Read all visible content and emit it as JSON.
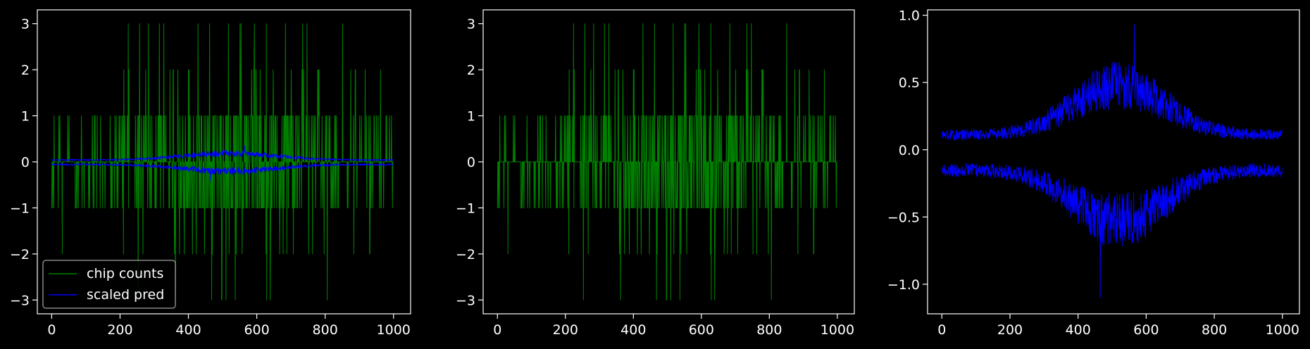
{
  "chart_data": [
    {
      "type": "line",
      "title": "",
      "xlabel": "",
      "ylabel": "",
      "xlim": [
        -42,
        1050
      ],
      "ylim": [
        -3.3,
        3.3
      ],
      "xticks": [
        0,
        200,
        400,
        600,
        800,
        1000
      ],
      "xtick_labels": [
        "0",
        "200",
        "400",
        "600",
        "800",
        "1000"
      ],
      "yticks": [
        3,
        2,
        1,
        0,
        -1,
        -2,
        -3
      ],
      "ytick_labels": [
        "3",
        "2",
        "1",
        "0",
        "−1",
        "−2",
        "−3"
      ],
      "grid": false,
      "legend": {
        "placement": "lower-left",
        "entries": [
          "chip counts",
          "scaled pred"
        ]
      },
      "series": [
        {
          "name": "chip counts",
          "kind": "counts",
          "color": "#008000",
          "n": 1000
        },
        {
          "name": "scaled pred",
          "kind": "pred-upper",
          "color": "#0000ff",
          "scale": 0.38
        },
        {
          "kind": "pred-lower",
          "color": "#0000ff",
          "scale": 0.38
        }
      ]
    },
    {
      "type": "line",
      "title": "",
      "xlabel": "",
      "ylabel": "",
      "xlim": [
        -42,
        1050
      ],
      "ylim": [
        -3.3,
        3.3
      ],
      "xticks": [
        0,
        200,
        400,
        600,
        800,
        1000
      ],
      "xtick_labels": [
        "0",
        "200",
        "400",
        "600",
        "800",
        "1000"
      ],
      "yticks": [
        3,
        2,
        1,
        0,
        -1,
        -2,
        -3
      ],
      "ytick_labels": [
        "3",
        "2",
        "1",
        "0",
        "−1",
        "−2",
        "−3"
      ],
      "grid": false,
      "series": [
        {
          "kind": "counts",
          "color": "#008000",
          "n": 1000
        }
      ]
    },
    {
      "type": "line",
      "title": "",
      "xlabel": "",
      "ylabel": "",
      "xlim": [
        -42,
        1050
      ],
      "ylim": [
        -1.22,
        1.04
      ],
      "xticks": [
        0,
        200,
        400,
        600,
        800,
        1000
      ],
      "xtick_labels": [
        "0",
        "200",
        "400",
        "600",
        "800",
        "1000"
      ],
      "yticks": [
        1.0,
        0.5,
        0.0,
        -0.5,
        -1.0
      ],
      "ytick_labels": [
        "1.0",
        "0.5",
        "0.0",
        "−0.5",
        "−1.0"
      ],
      "grid": false,
      "series": [
        {
          "kind": "pred-upper",
          "color": "#0000ff",
          "scale": 1.0
        },
        {
          "kind": "pred-lower",
          "color": "#0000ff",
          "scale": 1.0
        }
      ]
    }
  ]
}
